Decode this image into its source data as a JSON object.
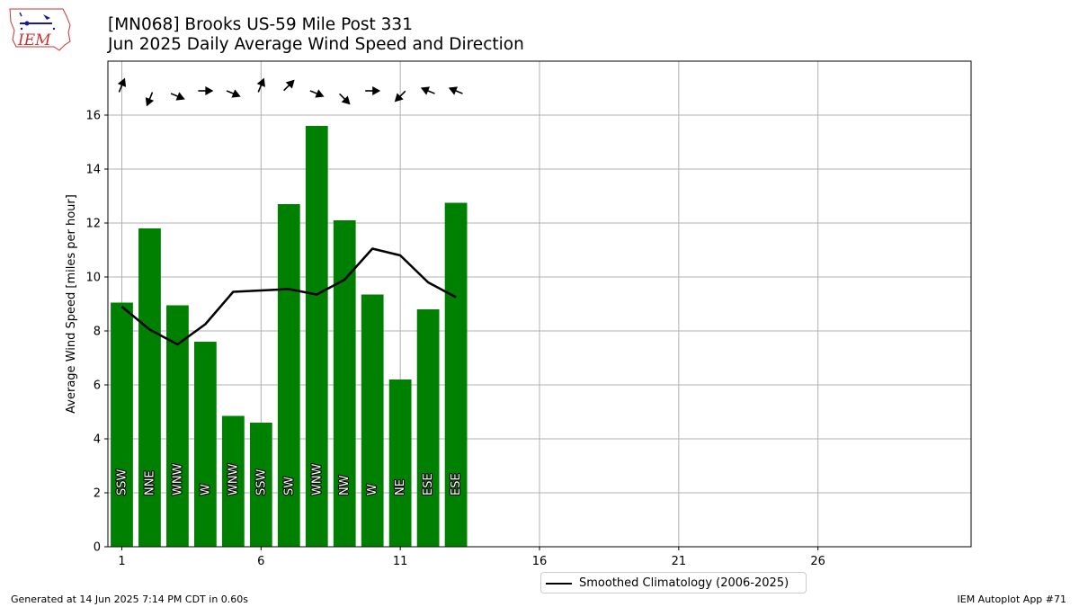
{
  "title": {
    "line1": "[MN068] Brooks US-59 Mile Post 331",
    "line2": "Jun 2025 Daily Average Wind Speed and Direction"
  },
  "logo": {
    "text": "IEM"
  },
  "footer": {
    "left": "Generated at 14 Jun 2025 7:14 PM CDT in 0.60s",
    "right": "IEM Autoplot App #71"
  },
  "legend": {
    "label": "Smoothed Climatology (2006-2025)"
  },
  "colors": {
    "bar": "#008000",
    "line": "#000000",
    "grid": "#b0b0b0"
  },
  "chart_data": {
    "type": "bar",
    "ylabel": "Average Wind Speed [miles per hour]",
    "xlim": [
      0.5,
      31.5
    ],
    "ylim": [
      0,
      18
    ],
    "xticks": [
      1,
      6,
      11,
      16,
      21,
      26
    ],
    "yticks": [
      0,
      2,
      4,
      6,
      8,
      10,
      12,
      14,
      16
    ],
    "grid": true,
    "legend_position": "bottom-center",
    "days": [
      1,
      2,
      3,
      4,
      5,
      6,
      7,
      8,
      9,
      10,
      11,
      12,
      13
    ],
    "values": [
      9.05,
      11.8,
      8.95,
      7.6,
      4.85,
      4.6,
      12.7,
      15.6,
      12.1,
      9.35,
      6.2,
      8.8,
      12.75
    ],
    "directions": [
      "SSW",
      "NNE",
      "WNW",
      "W",
      "WNW",
      "SSW",
      "SW",
      "WNW",
      "NW",
      "W",
      "NE",
      "ESE",
      "ESE"
    ],
    "arrow_direction_degrees": [
      202.5,
      22.5,
      292.5,
      270,
      292.5,
      202.5,
      225,
      292.5,
      315,
      270,
      45,
      112.5,
      112.5
    ],
    "series": [
      {
        "name": "Smoothed Climatology (2006-2025)",
        "x": [
          1,
          2,
          3,
          4,
          5,
          6,
          7,
          8,
          9,
          10,
          11,
          12,
          13
        ],
        "values": [
          8.9,
          8.05,
          7.5,
          8.25,
          9.45,
          9.5,
          9.55,
          9.35,
          9.9,
          11.05,
          10.8,
          9.8,
          9.25
        ]
      }
    ]
  }
}
